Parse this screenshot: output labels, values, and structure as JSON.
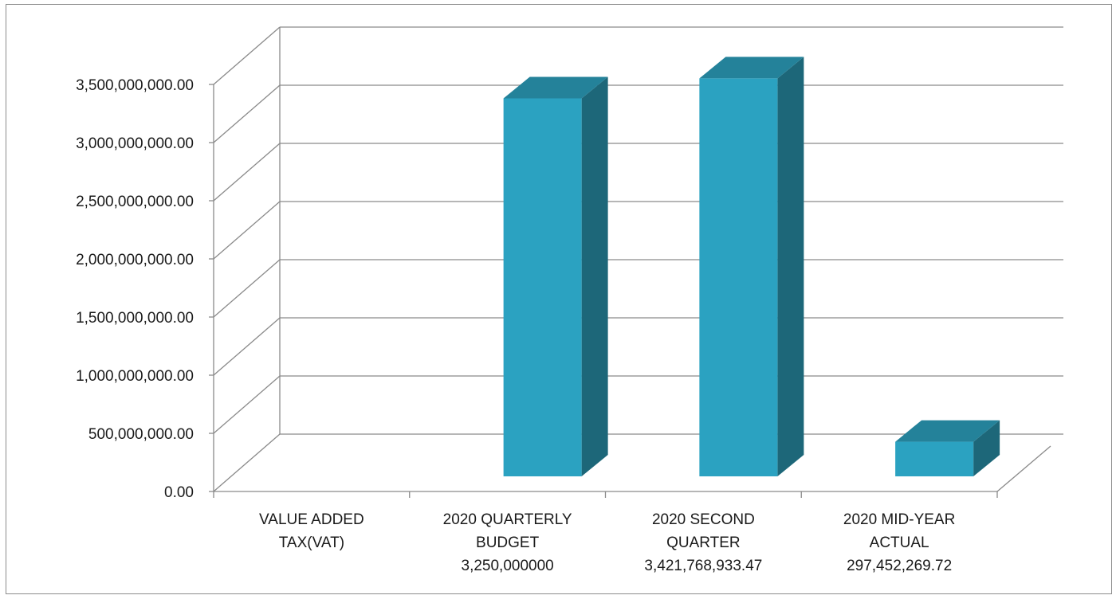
{
  "chart_data": {
    "type": "bar",
    "style": "3d-column",
    "categories": [
      [
        "VALUE ADDED",
        "TAX(VAT)"
      ],
      [
        "2020 QUARTERLY",
        "BUDGET",
        "3,250,000000"
      ],
      [
        "2020 SECOND",
        "QUARTER",
        "3,421,768,933.47"
      ],
      [
        "2020 MID-YEAR",
        "ACTUAL",
        "297,452,269.72"
      ]
    ],
    "series": [
      {
        "values": [
          0,
          3250000000,
          3421768933.47,
          297452269.72
        ]
      }
    ],
    "ylim": [
      0,
      3500000000
    ],
    "yticks": [
      {
        "value": 0,
        "label": "0.00"
      },
      {
        "value": 500000000,
        "label": "500,000,000.00"
      },
      {
        "value": 1000000000,
        "label": "1,000,000,000.00"
      },
      {
        "value": 1500000000,
        "label": "1,500,000,000.00"
      },
      {
        "value": 2000000000,
        "label": "2,000,000,000.00"
      },
      {
        "value": 2500000000,
        "label": "2,500,000,000.00"
      },
      {
        "value": 3000000000,
        "label": "3,000,000,000.00"
      },
      {
        "value": 3500000000,
        "label": "3,500,000,000.00"
      }
    ],
    "grid": true,
    "legend": "none",
    "colors": {
      "front": "#2ba2c1",
      "side": "#1d6779",
      "top": "#24829a",
      "grid": "#8a8a8a"
    }
  }
}
